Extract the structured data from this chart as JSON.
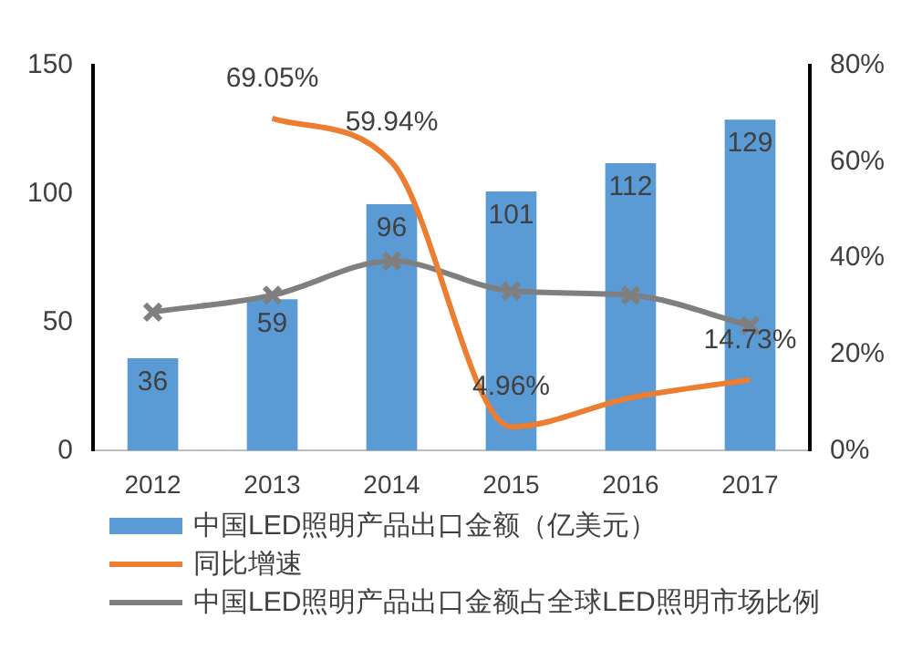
{
  "chart_data": {
    "type": "bar",
    "categories": [
      "2012",
      "2013",
      "2014",
      "2015",
      "2016",
      "2017"
    ],
    "series": [
      {
        "name": "中国LED照明产品出口金额（亿美元）",
        "color": "#5b9bd5",
        "values": [
          36,
          59,
          96,
          101,
          112,
          129
        ],
        "value_labels": [
          "36",
          "59",
          "96",
          "101",
          "112",
          "129"
        ]
      },
      {
        "name": "同比增速",
        "type": "line",
        "axis": "y2",
        "color": "#ed7d31",
        "marker": "none",
        "values": [
          null,
          69.05,
          59.94,
          4.96,
          11,
          14.73
        ],
        "value_labels": [
          null,
          "69.05%",
          "59.94%",
          "4.96%",
          null,
          "14.73%"
        ]
      },
      {
        "name": "中国LED照明产品出口金额占全球LED照明市场比例",
        "type": "line",
        "axis": "y2",
        "color": "#7f7f7f",
        "marker": "cross",
        "values": [
          28.8,
          32.3,
          39.4,
          33.2,
          32.3,
          26
        ]
      }
    ],
    "ylim": [
      0,
      150
    ],
    "yticks": [
      0,
      50,
      100,
      150
    ],
    "y2lim": [
      0,
      80
    ],
    "y2ticks": [
      {
        "value": 0,
        "label": "0%"
      },
      {
        "value": 20,
        "label": "20%"
      },
      {
        "value": 40,
        "label": "40%"
      },
      {
        "value": 60,
        "label": "60%"
      },
      {
        "value": 80,
        "label": "80%"
      }
    ],
    "grid": false,
    "legend": "bottom"
  }
}
